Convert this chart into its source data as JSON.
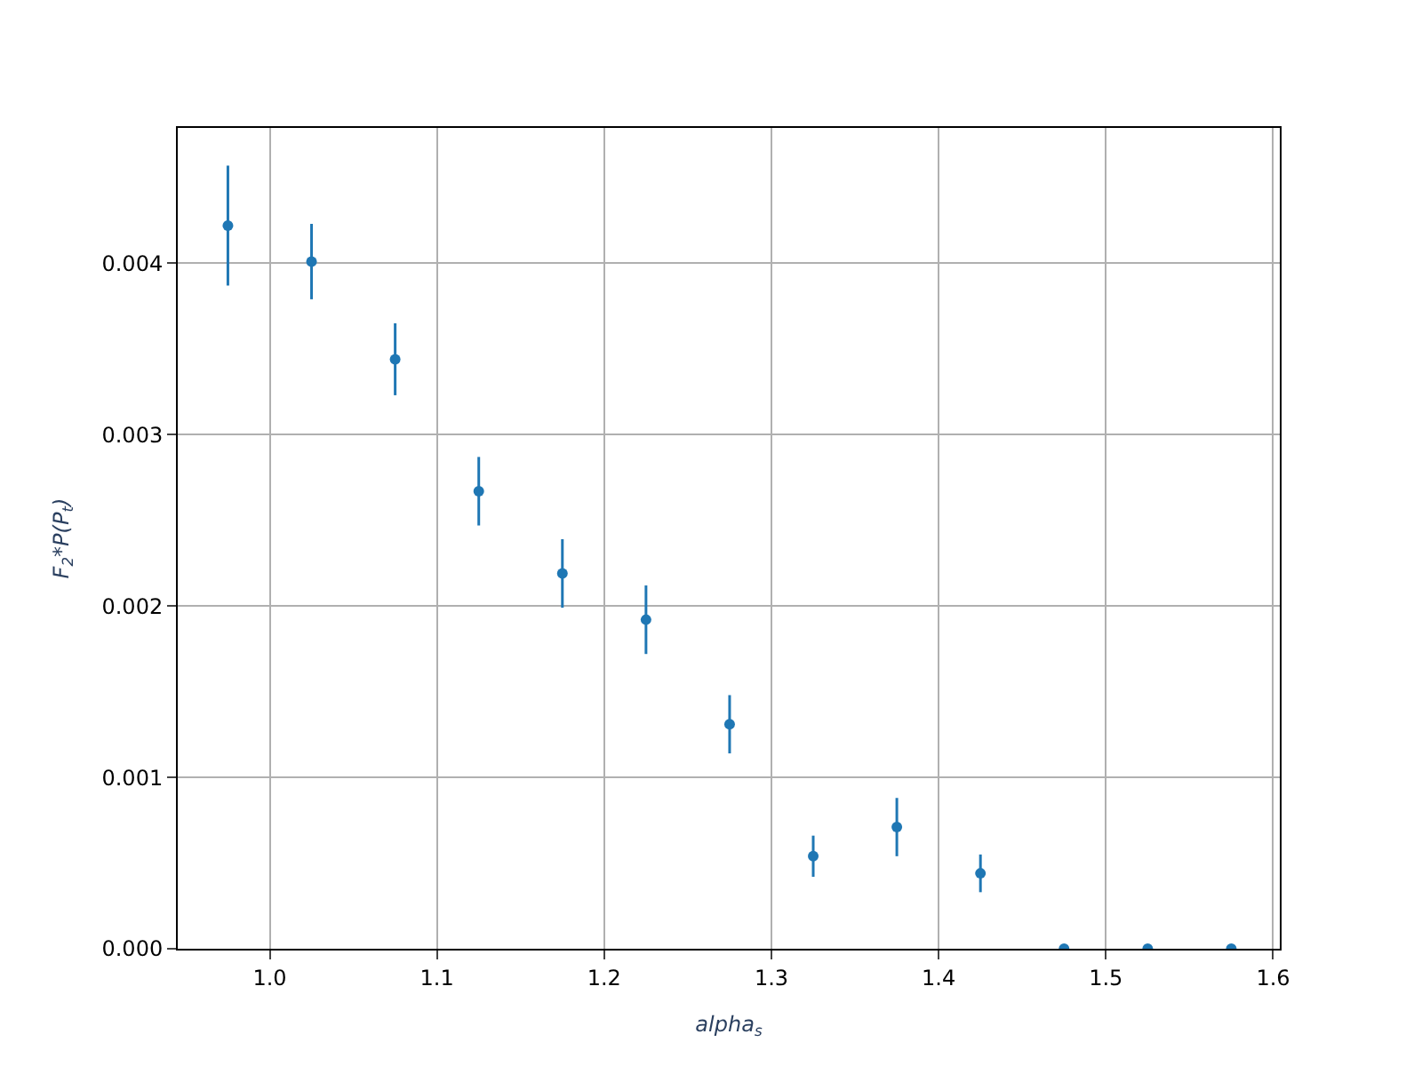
{
  "chart_data": {
    "type": "scatter",
    "xlabel": "alpha$_{s}$",
    "ylabel": "F$_{2}$*P(P$_{t}$)",
    "x": [
      0.975,
      1.025,
      1.075,
      1.125,
      1.175,
      1.225,
      1.275,
      1.325,
      1.375,
      1.425,
      1.475,
      1.525,
      1.575
    ],
    "series": [
      {
        "color": "#1f77b4",
        "values": [
          0.00422,
          0.00401,
          0.00344,
          0.00267,
          0.00219,
          0.00192,
          0.00131,
          0.00054,
          0.00071,
          0.00044,
          0.0,
          0.0,
          0.0
        ],
        "errors": [
          0.00035,
          0.00022,
          0.00021,
          0.0002,
          0.0002,
          0.0002,
          0.00017,
          0.00012,
          0.00017,
          0.00011,
          0.0,
          0.0,
          0.0
        ]
      }
    ],
    "xlim": [
      0.945,
      1.604
    ],
    "ylim": [
      0,
      0.00479
    ],
    "xticks": [
      {
        "value": 1.0,
        "label": "1.0"
      },
      1.1,
      1.2,
      1.3,
      1.4,
      1.5,
      1.6
    ],
    "yticks": [
      {
        "value": 0,
        "label": "0.000"
      },
      {
        "value": 0.001,
        "label": "0.001"
      },
      {
        "value": 0.002,
        "label": "0.002"
      },
      {
        "value": 0.003,
        "label": "0.003"
      },
      {
        "value": 0.004,
        "label": "0.004"
      }
    ],
    "grid": true,
    "marker": "circle"
  }
}
